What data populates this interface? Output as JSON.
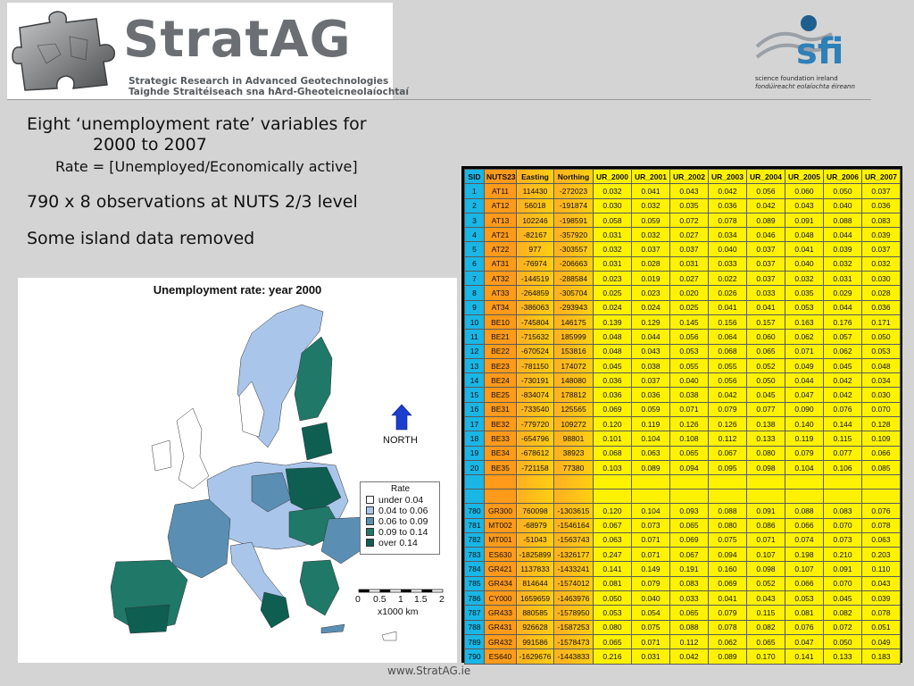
{
  "header": {
    "logo_name": "StratAG",
    "logo_line1": "Strategic Research in Advanced Geotechnologies",
    "logo_line2": "Taighde Straitéiseach sna hArd-Gheoteicneolaíochtaí",
    "sfi_mark": "sfi",
    "sfi_line1": "science foundation ireland",
    "sfi_line2": "fondúireacht eolaíochta éireann"
  },
  "bullets": {
    "b1_line1": "Eight ‘unemployment rate’ variables for",
    "b1_line2": "2000 to 2007",
    "b1_sub": "Rate = [Unemployed/Economically active]",
    "b2": "790 x 8 observations at NUTS 2/3 level",
    "b3": "Some island data removed"
  },
  "map": {
    "title": "Unemployment rate: year 2000",
    "north_label": "NORTH",
    "legend_title": "Rate",
    "legend": [
      {
        "label": "under 0.04",
        "color": "#ffffff"
      },
      {
        "label": "0.04 to 0.06",
        "color": "#a9c5ea"
      },
      {
        "label": "0.06 to 0.09",
        "color": "#5a8fb3"
      },
      {
        "label": "0.09 to 0.14",
        "color": "#1f7868"
      },
      {
        "label": "over 0.14",
        "color": "#0e5e52"
      }
    ],
    "scale_ticks": [
      "0",
      "0.5",
      "1",
      "1.5",
      "2"
    ],
    "scale_unit": "x1000 km"
  },
  "table": {
    "columns": [
      "SID",
      "NUTS23",
      "Easting",
      "Northing",
      "UR_2000",
      "UR_2001",
      "UR_2002",
      "UR_2003",
      "UR_2004",
      "UR_2005",
      "UR_2006",
      "UR_2007"
    ],
    "top_rows": [
      [
        "1",
        "AT11",
        "114430",
        "-272023",
        "0.032",
        "0.041",
        "0.043",
        "0.042",
        "0.056",
        "0.060",
        "0.050",
        "0.037"
      ],
      [
        "2",
        "AT12",
        "56018",
        "-191874",
        "0.030",
        "0.032",
        "0.035",
        "0.036",
        "0.042",
        "0.043",
        "0.040",
        "0.036"
      ],
      [
        "3",
        "AT13",
        "102246",
        "-198591",
        "0.058",
        "0.059",
        "0.072",
        "0.078",
        "0.089",
        "0.091",
        "0.088",
        "0.083"
      ],
      [
        "4",
        "AT21",
        "-82167",
        "-357920",
        "0.031",
        "0.032",
        "0.027",
        "0.034",
        "0.046",
        "0.048",
        "0.044",
        "0.039"
      ],
      [
        "5",
        "AT22",
        "977",
        "-303557",
        "0.032",
        "0.037",
        "0.037",
        "0.040",
        "0.037",
        "0.041",
        "0.039",
        "0.037"
      ],
      [
        "6",
        "AT31",
        "-76974",
        "-206663",
        "0.031",
        "0.028",
        "0.031",
        "0.033",
        "0.037",
        "0.040",
        "0.032",
        "0.032"
      ],
      [
        "7",
        "AT32",
        "-144519",
        "-288584",
        "0.023",
        "0.019",
        "0.027",
        "0.022",
        "0.037",
        "0.032",
        "0.031",
        "0.030"
      ],
      [
        "8",
        "AT33",
        "-264859",
        "-305704",
        "0.025",
        "0.023",
        "0.020",
        "0.026",
        "0.033",
        "0.035",
        "0.029",
        "0.028"
      ],
      [
        "9",
        "AT34",
        "-386063",
        "-293943",
        "0.024",
        "0.024",
        "0.025",
        "0.041",
        "0.041",
        "0.053",
        "0.044",
        "0.036"
      ],
      [
        "10",
        "BE10",
        "-745804",
        "146175",
        "0.139",
        "0.129",
        "0.145",
        "0.156",
        "0.157",
        "0.163",
        "0.176",
        "0.171"
      ],
      [
        "11",
        "BE21",
        "-715632",
        "185999",
        "0.048",
        "0.044",
        "0.056",
        "0.064",
        "0.060",
        "0.062",
        "0.057",
        "0.050"
      ],
      [
        "12",
        "BE22",
        "-670524",
        "153816",
        "0.048",
        "0.043",
        "0.053",
        "0.068",
        "0.065",
        "0.071",
        "0.062",
        "0.053"
      ],
      [
        "13",
        "BE23",
        "-781150",
        "174072",
        "0.045",
        "0.038",
        "0.055",
        "0.055",
        "0.052",
        "0.049",
        "0.045",
        "0.048"
      ],
      [
        "14",
        "BE24",
        "-730191",
        "148080",
        "0.036",
        "0.037",
        "0.040",
        "0.056",
        "0.050",
        "0.044",
        "0.042",
        "0.034"
      ],
      [
        "15",
        "BE25",
        "-834074",
        "178812",
        "0.036",
        "0.036",
        "0.038",
        "0.042",
        "0.045",
        "0.047",
        "0.042",
        "0.030"
      ],
      [
        "16",
        "BE31",
        "-733540",
        "125565",
        "0.069",
        "0.059",
        "0.071",
        "0.079",
        "0.077",
        "0.090",
        "0.076",
        "0.070"
      ],
      [
        "17",
        "BE32",
        "-779720",
        "109272",
        "0.120",
        "0.119",
        "0.126",
        "0.126",
        "0.138",
        "0.140",
        "0.144",
        "0.128"
      ],
      [
        "18",
        "BE33",
        "-654796",
        "98801",
        "0.101",
        "0.104",
        "0.108",
        "0.112",
        "0.133",
        "0.119",
        "0.115",
        "0.109"
      ],
      [
        "19",
        "BE34",
        "-678612",
        "38923",
        "0.068",
        "0.063",
        "0.065",
        "0.067",
        "0.080",
        "0.079",
        "0.077",
        "0.066"
      ],
      [
        "20",
        "BE35",
        "-721158",
        "77380",
        "0.103",
        "0.089",
        "0.094",
        "0.095",
        "0.098",
        "0.104",
        "0.106",
        "0.085"
      ]
    ],
    "bottom_rows": [
      [
        "780",
        "GR300",
        "760098",
        "-1303615",
        "0.120",
        "0.104",
        "0.093",
        "0.088",
        "0.091",
        "0.088",
        "0.083",
        "0.076"
      ],
      [
        "781",
        "MT002",
        "-68979",
        "-1546164",
        "0.067",
        "0.073",
        "0.065",
        "0.080",
        "0.086",
        "0.066",
        "0.070",
        "0.078"
      ],
      [
        "782",
        "MT001",
        "-51043",
        "-1563743",
        "0.063",
        "0.071",
        "0.069",
        "0.075",
        "0.071",
        "0.074",
        "0.073",
        "0.063"
      ],
      [
        "783",
        "ES630",
        "-1825899",
        "-1326177",
        "0.247",
        "0.071",
        "0.067",
        "0.094",
        "0.107",
        "0.198",
        "0.210",
        "0.203"
      ],
      [
        "784",
        "GR421",
        "1137833",
        "-1433241",
        "0.141",
        "0.149",
        "0.191",
        "0.160",
        "0.098",
        "0.107",
        "0.091",
        "0.110"
      ],
      [
        "785",
        "GR434",
        "814644",
        "-1574012",
        "0.081",
        "0.079",
        "0.083",
        "0.069",
        "0.052",
        "0.066",
        "0.070",
        "0.043"
      ],
      [
        "786",
        "CY000",
        "1659659",
        "-1463976",
        "0.050",
        "0.040",
        "0.033",
        "0.041",
        "0.043",
        "0.053",
        "0.045",
        "0.039"
      ],
      [
        "787",
        "GR433",
        "880585",
        "-1578950",
        "0.053",
        "0.054",
        "0.065",
        "0.079",
        "0.115",
        "0.081",
        "0.082",
        "0.078"
      ],
      [
        "788",
        "GR431",
        "926628",
        "-1587253",
        "0.080",
        "0.075",
        "0.088",
        "0.078",
        "0.082",
        "0.076",
        "0.072",
        "0.051"
      ],
      [
        "789",
        "GR432",
        "991586",
        "-1578473",
        "0.065",
        "0.071",
        "0.112",
        "0.062",
        "0.065",
        "0.047",
        "0.050",
        "0.049"
      ],
      [
        "790",
        "ES640",
        "-1629676",
        "-1443833",
        "0.216",
        "0.031",
        "0.042",
        "0.089",
        "0.170",
        "0.141",
        "0.133",
        "0.183"
      ]
    ]
  },
  "footer": "www.StratAG.ie",
  "colors": {
    "background": "#d4d4d4",
    "sid_col": "#19b6e6",
    "nuts_col": "#ff9a1a",
    "ur_col": "#fff200",
    "logo_grey": "#6b6f73",
    "sfi_blue": "#2f7fb8"
  }
}
